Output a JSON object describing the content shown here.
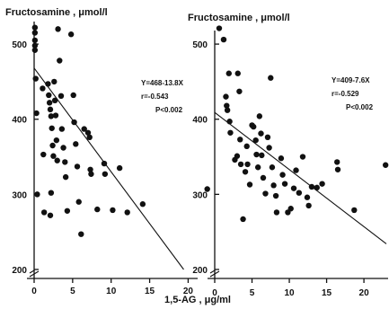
{
  "chart_data": [
    {
      "type": "scatter",
      "title": "",
      "ylabel": "Fructosamine , μmol/l",
      "xlabel": "1,5-AG , μg/ml",
      "xlim": [
        0,
        21
      ],
      "ylim": [
        200,
        530
      ],
      "y_axis_break": true,
      "grid": false,
      "x_ticks": [
        "0",
        "5",
        "10",
        "15",
        "20"
      ],
      "x_tick_values": [
        0,
        5,
        10,
        15,
        20
      ],
      "y_ticks": [
        "200",
        "300",
        "400",
        "500"
      ],
      "y_tick_values": [
        200,
        300,
        400,
        500
      ],
      "annotation": [
        "Y=468-13.8X",
        "r=-0.543",
        "P<0.002"
      ],
      "regression": {
        "intercept": 468,
        "slope": -13.8
      },
      "points": [
        [
          0.1,
          522
        ],
        [
          0.1,
          515
        ],
        [
          0.1,
          505
        ],
        [
          0.1,
          498
        ],
        [
          0.1,
          492
        ],
        [
          0.2,
          454
        ],
        [
          0.3,
          408
        ],
        [
          0.4,
          300
        ],
        [
          1.1,
          441
        ],
        [
          1.2,
          353
        ],
        [
          1.3,
          276
        ],
        [
          1.8,
          447
        ],
        [
          1.9,
          432
        ],
        [
          2.0,
          422
        ],
        [
          2.1,
          413
        ],
        [
          2.2,
          404
        ],
        [
          2.3,
          388
        ],
        [
          2.4,
          365
        ],
        [
          2.5,
          351
        ],
        [
          2.2,
          302
        ],
        [
          2.1,
          272
        ],
        [
          2.6,
          450
        ],
        [
          2.7,
          425
        ],
        [
          2.8,
          405
        ],
        [
          2.9,
          372
        ],
        [
          3.0,
          345
        ],
        [
          3.1,
          520
        ],
        [
          3.3,
          478
        ],
        [
          3.5,
          431
        ],
        [
          3.6,
          387
        ],
        [
          3.8,
          362
        ],
        [
          4.0,
          343
        ],
        [
          4.1,
          323
        ],
        [
          4.3,
          278
        ],
        [
          4.8,
          513
        ],
        [
          5.1,
          432
        ],
        [
          5.2,
          396
        ],
        [
          5.4,
          367
        ],
        [
          5.6,
          337
        ],
        [
          5.8,
          290
        ],
        [
          6.1,
          247
        ],
        [
          6.5,
          387
        ],
        [
          7.0,
          382
        ],
        [
          7.2,
          376
        ],
        [
          7.3,
          333
        ],
        [
          7.4,
          327
        ],
        [
          8.2,
          280
        ],
        [
          9.1,
          341
        ],
        [
          9.2,
          327
        ],
        [
          10.2,
          279
        ],
        [
          11.1,
          335
        ],
        [
          12.1,
          276
        ],
        [
          14.1,
          287
        ]
      ]
    },
    {
      "type": "scatter",
      "title": "",
      "ylabel": "Fructosamine , μmol/l",
      "xlabel": "",
      "xlim": [
        0,
        23
      ],
      "ylim": [
        200,
        530
      ],
      "y_axis_break": true,
      "grid": false,
      "x_ticks": [
        "0",
        "5",
        "10",
        "15",
        "20"
      ],
      "x_tick_values": [
        0,
        5,
        10,
        15,
        20
      ],
      "y_ticks": [
        "200",
        "300",
        "400",
        "500"
      ],
      "y_tick_values": [
        200,
        300,
        400,
        500
      ],
      "annotation": [
        "Y=409-7.6X",
        "r=-0.529",
        "P<0.002"
      ],
      "regression": {
        "intercept": 409,
        "slope": -7.6
      },
      "points": [
        [
          -1.0,
          307
        ],
        [
          0.6,
          521
        ],
        [
          1.2,
          506
        ],
        [
          1.5,
          430
        ],
        [
          1.6,
          418
        ],
        [
          1.7,
          412
        ],
        [
          1.9,
          461
        ],
        [
          2.0,
          397
        ],
        [
          2.1,
          382
        ],
        [
          2.7,
          346
        ],
        [
          3.0,
          351
        ],
        [
          3.1,
          461
        ],
        [
          3.3,
          437
        ],
        [
          3.4,
          373
        ],
        [
          3.5,
          340
        ],
        [
          3.8,
          267
        ],
        [
          4.1,
          330
        ],
        [
          4.3,
          364
        ],
        [
          4.4,
          340
        ],
        [
          4.7,
          313
        ],
        [
          5.0,
          392
        ],
        [
          5.2,
          390
        ],
        [
          5.5,
          372
        ],
        [
          5.6,
          353
        ],
        [
          5.8,
          336
        ],
        [
          6.0,
          404
        ],
        [
          6.2,
          381
        ],
        [
          6.3,
          352
        ],
        [
          6.5,
          322
        ],
        [
          6.8,
          301
        ],
        [
          7.1,
          376
        ],
        [
          7.3,
          362
        ],
        [
          7.5,
          455
        ],
        [
          7.7,
          336
        ],
        [
          7.9,
          312
        ],
        [
          8.2,
          298
        ],
        [
          8.3,
          276
        ],
        [
          8.9,
          348
        ],
        [
          9.1,
          326
        ],
        [
          9.4,
          314
        ],
        [
          9.8,
          276
        ],
        [
          10.2,
          281
        ],
        [
          10.6,
          308
        ],
        [
          10.9,
          332
        ],
        [
          11.3,
          302
        ],
        [
          11.8,
          350
        ],
        [
          12.4,
          296
        ],
        [
          12.6,
          285
        ],
        [
          13.0,
          310
        ],
        [
          13.7,
          309
        ],
        [
          14.4,
          314
        ],
        [
          16.4,
          343
        ],
        [
          16.5,
          333
        ],
        [
          18.7,
          279
        ],
        [
          22.9,
          339
        ]
      ]
    }
  ]
}
